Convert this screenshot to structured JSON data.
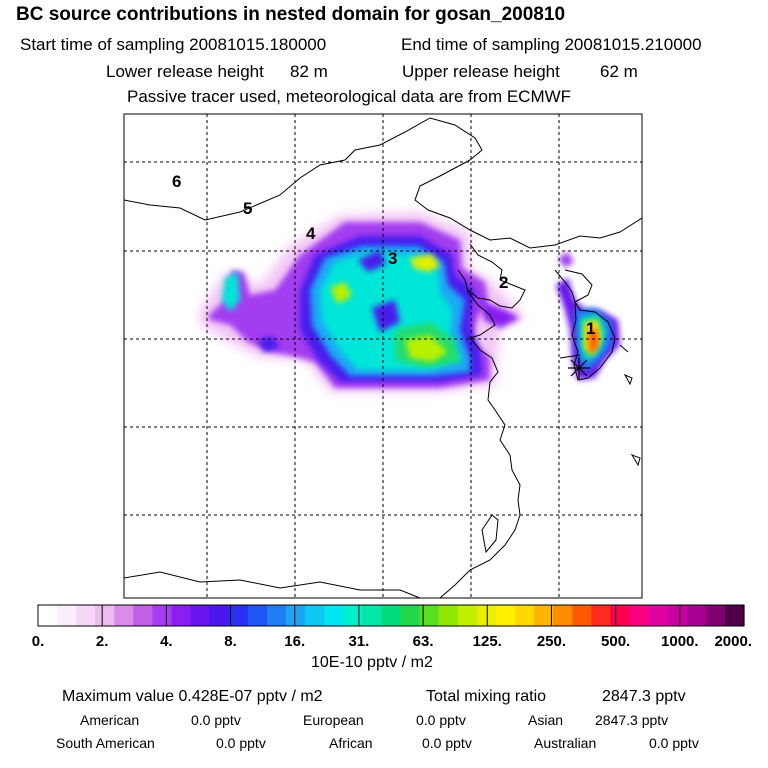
{
  "header": {
    "title": "BC  source contributions in nested domain for gosan_200810",
    "start_label": "Start time of sampling 20081015.180000",
    "end_label": "End time of sampling 20081015.210000",
    "lower_label": "Lower release height",
    "lower_value": "82 m",
    "upper_label": "Upper release height",
    "upper_value": "62 m",
    "tracer_note": "Passive tracer used, meteorological data are from ECMWF"
  },
  "map": {
    "labels": [
      "6",
      "5",
      "4",
      "3",
      "2",
      "1"
    ],
    "receptor_marker": "star-marker"
  },
  "colorbar": {
    "ticks": [
      "0.",
      "2.",
      "4.",
      "8.",
      "16.",
      "31.",
      "63.",
      "125.",
      "250.",
      "500.",
      "1000.",
      "2000."
    ],
    "unit": "10E-10 pptv / m2",
    "colors": [
      "#ffffff",
      "#fbeefb",
      "#f5d8f5",
      "#ecbbf0",
      "#d98ce8",
      "#c160e6",
      "#a83af0",
      "#8a1ff2",
      "#6a14ee",
      "#4a18ee",
      "#2a30f2",
      "#1f55f5",
      "#1f7df5",
      "#1aa5f5",
      "#10c8f5",
      "#00e6f0",
      "#00f0d0",
      "#00e8a8",
      "#00dc7a",
      "#22d84a",
      "#55e020",
      "#90e800",
      "#c0f000",
      "#e8f000",
      "#fff000",
      "#ffd800",
      "#ffb400",
      "#ff8c00",
      "#ff5a00",
      "#ff2a20",
      "#ff0050",
      "#f80080",
      "#e000a0",
      "#c8009e",
      "#a80090",
      "#800070",
      "#50004a"
    ]
  },
  "footer": {
    "max_label": "Maximum value  0.428E-07 pptv / m2",
    "total_label": "Total mixing ratio",
    "total_value": "2847.3 pptv",
    "american_label": "American",
    "american_value": "0.0 pptv",
    "european_label": "European",
    "european_value": "0.0 pptv",
    "asian_label": "Asian",
    "asian_value": "2847.3 pptv",
    "south_american_label": "South American",
    "south_american_value": "0.0 pptv",
    "african_label": "African",
    "african_value": "0.0 pptv",
    "australian_label": "Australian",
    "australian_value": "0.0 pptv"
  }
}
